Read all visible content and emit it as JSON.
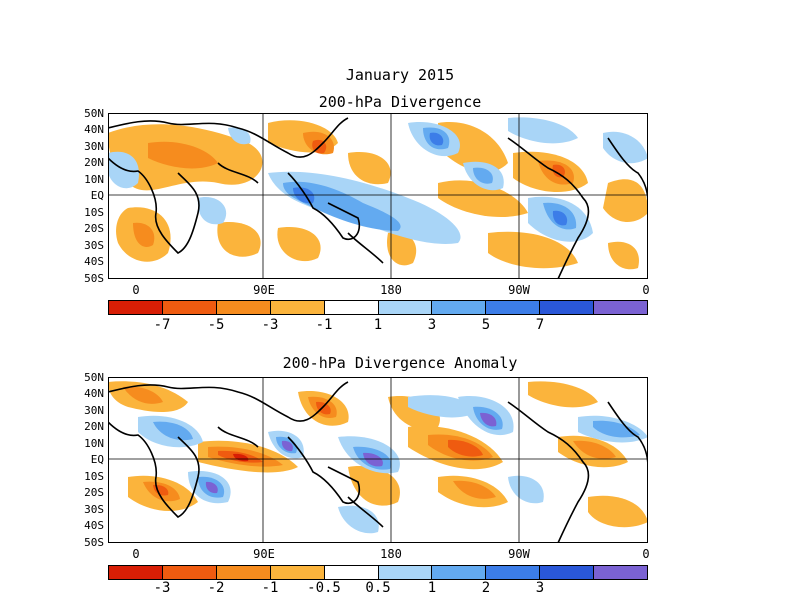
{
  "month_title": "January 2015",
  "maps": [
    {
      "title": "200-hPa Divergence",
      "lat_labels": [
        "50N",
        "40N",
        "30N",
        "20N",
        "10N",
        "EQ",
        "10S",
        "20S",
        "30S",
        "40S",
        "50S"
      ],
      "lon_labels": [
        "0",
        "90E",
        "180",
        "90W",
        "0"
      ],
      "colorbar": {
        "colors": [
          "#d81e05",
          "#ef5b10",
          "#f68c1e",
          "#fbb43c",
          "#ffffff",
          "#a9d5f7",
          "#63aaf0",
          "#3c7de8",
          "#2a57d8",
          "#7b62d3"
        ],
        "labels": [
          "-7",
          "-5",
          "-3",
          "-1",
          "1",
          "3",
          "5",
          "7"
        ]
      }
    },
    {
      "title": "200-hPa Divergence Anomaly",
      "lat_labels": [
        "50N",
        "40N",
        "30N",
        "20N",
        "10N",
        "EQ",
        "10S",
        "20S",
        "30S",
        "40S",
        "50S"
      ],
      "lon_labels": [
        "0",
        "90E",
        "180",
        "90W",
        "0"
      ],
      "colorbar": {
        "colors": [
          "#d81e05",
          "#ef5b10",
          "#f68c1e",
          "#fbb43c",
          "#ffffff",
          "#a9d5f7",
          "#63aaf0",
          "#3c7de8",
          "#2a57d8",
          "#7b62d3"
        ],
        "labels": [
          "-3",
          "-2",
          "-1",
          "-0.5",
          "0.5",
          "1",
          "2",
          "3"
        ]
      }
    }
  ]
}
